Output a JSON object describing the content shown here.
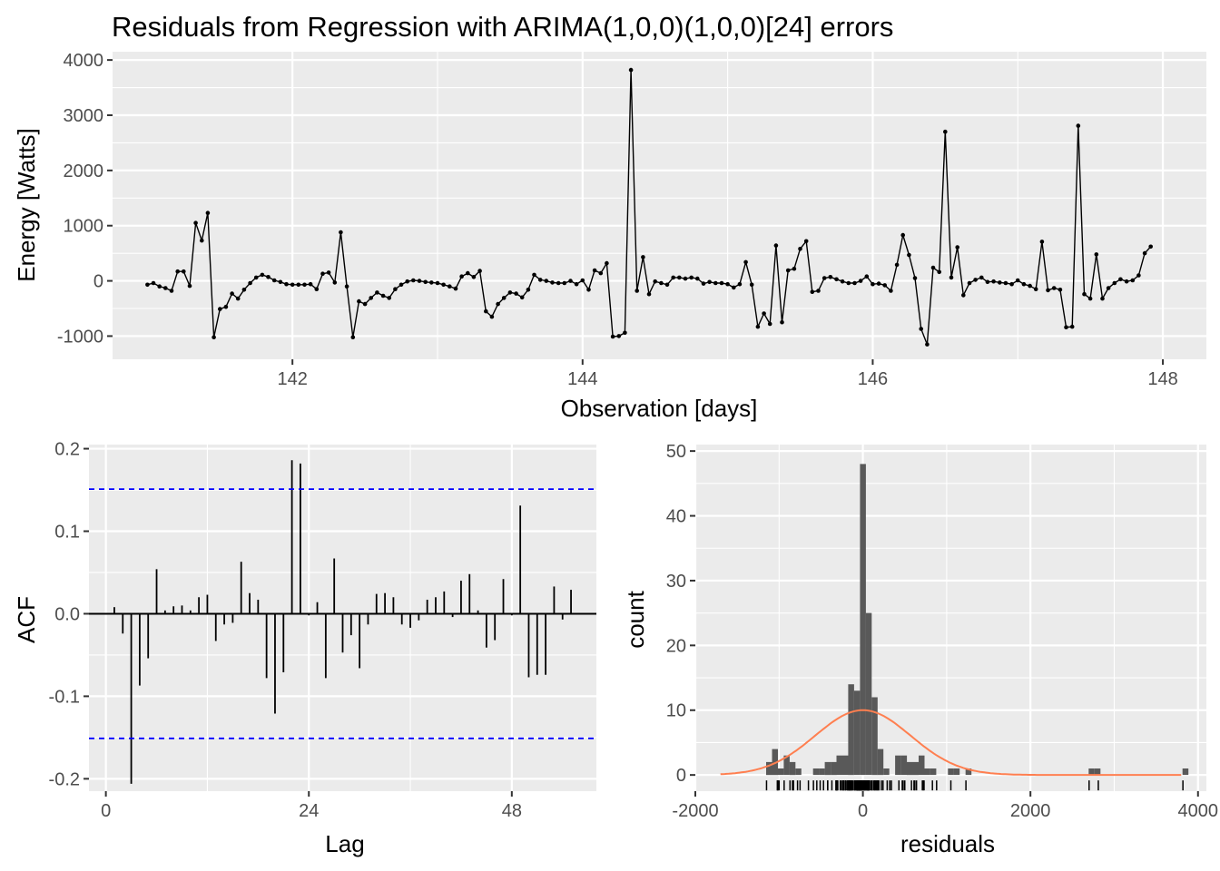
{
  "title": "Residuals from Regression with ARIMA(1,0,0)(1,0,0)[24] errors",
  "chart_data": [
    {
      "type": "line",
      "xlabel": "Observation [days]",
      "ylabel": "Energy [Watts]",
      "xlim": [
        140.76,
        148.3
      ],
      "ylim": [
        -1420,
        4150
      ],
      "x_ticks": [
        142,
        144,
        146,
        148
      ],
      "y_ticks": [
        -1000,
        0,
        1000,
        2000,
        3000,
        4000
      ],
      "x_tick_labels": [
        "142",
        "144",
        "146",
        "148"
      ],
      "y_tick_labels": [
        "-1000",
        "0",
        "1000",
        "2000",
        "3000",
        "4000"
      ],
      "grid": true,
      "color": "#000000",
      "x_start": 141.0,
      "x_step": 0.0416667,
      "values": [
        -70,
        -40,
        -100,
        -130,
        -180,
        170,
        170,
        -90,
        1050,
        730,
        1230,
        -1020,
        -510,
        -470,
        -230,
        -320,
        -160,
        -40,
        60,
        110,
        70,
        10,
        -20,
        -60,
        -70,
        -70,
        -70,
        -60,
        -150,
        130,
        150,
        -30,
        880,
        -100,
        -1020,
        -370,
        -420,
        -310,
        -210,
        -270,
        -310,
        -150,
        -70,
        -10,
        10,
        0,
        -20,
        -30,
        -40,
        -70,
        -100,
        -140,
        80,
        140,
        70,
        180,
        -550,
        -650,
        -420,
        -310,
        -210,
        -230,
        -300,
        -160,
        110,
        20,
        0,
        -30,
        -40,
        -40,
        0,
        -60,
        10,
        -160,
        190,
        140,
        320,
        -1010,
        -1000,
        -940,
        3820,
        -180,
        430,
        -240,
        -10,
        -40,
        -70,
        60,
        60,
        40,
        60,
        40,
        -50,
        -20,
        -40,
        -40,
        -60,
        -120,
        -60,
        340,
        -70,
        -830,
        -590,
        -780,
        640,
        -750,
        190,
        220,
        580,
        720,
        -200,
        -180,
        50,
        70,
        30,
        -10,
        -40,
        -40,
        0,
        80,
        -60,
        -50,
        -80,
        -180,
        290,
        830,
        470,
        50,
        -870,
        -1150,
        240,
        160,
        2700,
        60,
        610,
        -260,
        -40,
        20,
        60,
        -20,
        -10,
        -30,
        -40,
        -60,
        10,
        -60,
        -90,
        -150,
        710,
        -170,
        -130,
        -160,
        -840,
        -830,
        2810,
        -240,
        -320,
        480,
        -320,
        -130,
        -40,
        30,
        -10,
        10,
        100,
        500,
        620
      ]
    },
    {
      "type": "bar",
      "xlabel": "Lag",
      "ylabel": "ACF",
      "xlim": [
        -2,
        58
      ],
      "ylim": [
        -0.215,
        0.205
      ],
      "x_ticks": [
        0,
        24,
        48
      ],
      "y_ticks": [
        -0.2,
        -0.1,
        0.0,
        0.1,
        0.2
      ],
      "x_tick_labels": [
        "0",
        "24",
        "48"
      ],
      "y_tick_labels": [
        "-0.2",
        "-0.1",
        "0.0",
        "0.1",
        "0.2"
      ],
      "grid": true,
      "confidence_limit": 0.151,
      "confidence_color": "#0000ff",
      "lags": [
        1,
        2,
        3,
        4,
        5,
        6,
        7,
        8,
        9,
        10,
        11,
        12,
        13,
        14,
        15,
        16,
        17,
        18,
        19,
        20,
        21,
        22,
        23,
        24,
        25,
        26,
        27,
        28,
        29,
        30,
        31,
        32,
        33,
        34,
        35,
        36,
        37,
        38,
        39,
        40,
        41,
        42,
        43,
        44,
        45,
        46,
        47,
        48,
        49,
        50,
        51,
        52,
        53,
        54,
        55,
        56,
        57
      ],
      "values": [
        0.008,
        -0.024,
        -0.206,
        -0.087,
        -0.054,
        0.054,
        0.004,
        0.009,
        0.01,
        0.004,
        0.02,
        0.023,
        -0.033,
        -0.013,
        -0.011,
        0.063,
        0.025,
        0.017,
        -0.078,
        -0.121,
        -0.071,
        0.186,
        0.182,
        -0.002,
        0.014,
        -0.078,
        0.067,
        -0.047,
        -0.026,
        -0.066,
        -0.013,
        0.024,
        0.025,
        0.02,
        -0.013,
        -0.017,
        -0.008,
        0.017,
        0.02,
        0.027,
        -0.004,
        0.04,
        0.048,
        0.004,
        -0.041,
        -0.032,
        0.042,
        -0.002,
        0.131,
        -0.077,
        -0.074,
        -0.074,
        0.033,
        -0.007,
        0.029,
        0.0,
        0.0
      ]
    },
    {
      "type": "histogram",
      "xlabel": "residuals",
      "ylabel": "count",
      "xlim": [
        -2000,
        4100
      ],
      "ylim": [
        -2.5,
        51
      ],
      "x_ticks": [
        -2000,
        0,
        2000,
        4000
      ],
      "y_ticks": [
        0,
        10,
        20,
        30,
        40,
        50
      ],
      "x_tick_labels": [
        "-2000",
        "0",
        "2000",
        "4000"
      ],
      "y_tick_labels": [
        "0",
        "10",
        "20",
        "30",
        "40",
        "50"
      ],
      "grid": true,
      "bar_color": "#595959",
      "bin_width": 70,
      "bins": [
        {
          "center": -1120,
          "count": 2
        },
        {
          "center": -1050,
          "count": 4
        },
        {
          "center": -980,
          "count": 1
        },
        {
          "center": -910,
          "count": 3
        },
        {
          "center": -840,
          "count": 2
        },
        {
          "center": -770,
          "count": 1
        },
        {
          "center": -560,
          "count": 1
        },
        {
          "center": -490,
          "count": 1
        },
        {
          "center": -420,
          "count": 2
        },
        {
          "center": -350,
          "count": 2
        },
        {
          "center": -280,
          "count": 3
        },
        {
          "center": -210,
          "count": 3
        },
        {
          "center": -140,
          "count": 14
        },
        {
          "center": -70,
          "count": 13
        },
        {
          "center": 0,
          "count": 48
        },
        {
          "center": 70,
          "count": 25
        },
        {
          "center": 140,
          "count": 12
        },
        {
          "center": 210,
          "count": 4
        },
        {
          "center": 280,
          "count": 1
        },
        {
          "center": 420,
          "count": 3
        },
        {
          "center": 490,
          "count": 3
        },
        {
          "center": 560,
          "count": 2
        },
        {
          "center": 630,
          "count": 2
        },
        {
          "center": 700,
          "count": 3
        },
        {
          "center": 770,
          "count": 1
        },
        {
          "center": 840,
          "count": 1
        },
        {
          "center": 1050,
          "count": 1
        },
        {
          "center": 1120,
          "count": 1
        },
        {
          "center": 1260,
          "count": 1
        },
        {
          "center": 2730,
          "count": 1
        },
        {
          "center": 2800,
          "count": 1
        },
        {
          "center": 3850,
          "count": 1
        }
      ],
      "density_curve": {
        "color": "#ff7f50",
        "mean": 0,
        "sd": 570,
        "peak_count": 10,
        "x_range": [
          -1700,
          3800
        ]
      }
    }
  ]
}
